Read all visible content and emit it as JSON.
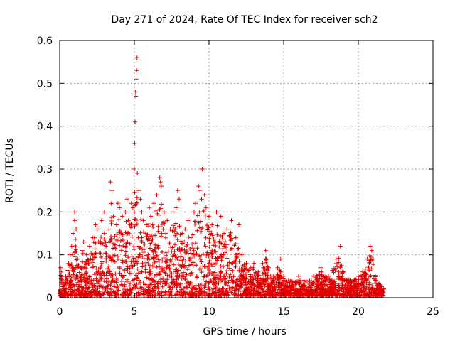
{
  "chart_data": {
    "type": "scatter",
    "title": "Day 271 of 2024, Rate Of TEC Index for receiver sch2",
    "xlabel": "GPS time / hours",
    "ylabel": "ROTI / TECUs",
    "xlim": [
      0,
      25
    ],
    "ylim": [
      0,
      0.6
    ],
    "xticks": [
      0,
      5,
      10,
      15,
      20,
      25
    ],
    "yticks": [
      0,
      0.1,
      0.2,
      0.3,
      0.4,
      0.5,
      0.6
    ],
    "xtick_labels": [
      "0",
      "5",
      "10",
      "15",
      "20",
      "25"
    ],
    "ytick_labels": [
      "0",
      "0.1",
      "0.2",
      "0.3",
      "0.4",
      "0.5",
      "0.6"
    ],
    "grid": true,
    "marker": "+",
    "color": "#e00000",
    "series": [
      {
        "name": "ROTI",
        "points": [
          [
            0.05,
            0.07
          ],
          [
            0.1,
            0.06
          ],
          [
            0.2,
            0.04
          ],
          [
            0.4,
            0.05
          ],
          [
            0.6,
            0.08
          ],
          [
            0.7,
            0.1
          ],
          [
            0.8,
            0.12
          ],
          [
            0.9,
            0.15
          ],
          [
            1.0,
            0.18
          ],
          [
            1.0,
            0.2
          ],
          [
            1.1,
            0.16
          ],
          [
            1.2,
            0.09
          ],
          [
            1.4,
            0.07
          ],
          [
            1.5,
            0.11
          ],
          [
            1.6,
            0.13
          ],
          [
            1.8,
            0.1
          ],
          [
            2.0,
            0.12
          ],
          [
            2.2,
            0.14
          ],
          [
            2.4,
            0.17
          ],
          [
            2.5,
            0.16
          ],
          [
            2.6,
            0.13
          ],
          [
            2.8,
            0.18
          ],
          [
            3.0,
            0.2
          ],
          [
            3.1,
            0.12
          ],
          [
            3.3,
            0.16
          ],
          [
            3.4,
            0.27
          ],
          [
            3.5,
            0.25
          ],
          [
            3.6,
            0.19
          ],
          [
            3.8,
            0.17
          ],
          [
            3.9,
            0.22
          ],
          [
            4.0,
            0.21
          ],
          [
            4.1,
            0.15
          ],
          [
            4.2,
            0.19
          ],
          [
            4.3,
            0.13
          ],
          [
            4.4,
            0.2
          ],
          [
            4.5,
            0.23
          ],
          [
            4.6,
            0.18
          ],
          [
            4.7,
            0.17
          ],
          [
            4.8,
            0.22
          ],
          [
            4.9,
            0.21
          ],
          [
            5.0,
            0.3
          ],
          [
            5.02,
            0.36
          ],
          [
            5.05,
            0.41
          ],
          [
            5.08,
            0.48
          ],
          [
            5.1,
            0.47
          ],
          [
            5.12,
            0.51
          ],
          [
            5.15,
            0.53
          ],
          [
            5.18,
            0.56
          ],
          [
            5.2,
            0.29
          ],
          [
            5.3,
            0.25
          ],
          [
            5.4,
            0.23
          ],
          [
            5.5,
            0.2
          ],
          [
            5.6,
            0.18
          ],
          [
            5.8,
            0.17
          ],
          [
            6.0,
            0.21
          ],
          [
            6.1,
            0.19
          ],
          [
            6.3,
            0.22
          ],
          [
            6.5,
            0.24
          ],
          [
            6.7,
            0.28
          ],
          [
            6.75,
            0.27
          ],
          [
            6.8,
            0.26
          ],
          [
            7.0,
            0.2
          ],
          [
            7.2,
            0.18
          ],
          [
            7.4,
            0.16
          ],
          [
            7.6,
            0.2
          ],
          [
            7.8,
            0.21
          ],
          [
            7.9,
            0.25
          ],
          [
            8.0,
            0.23
          ],
          [
            8.2,
            0.15
          ],
          [
            8.4,
            0.16
          ],
          [
            8.6,
            0.18
          ],
          [
            8.8,
            0.14
          ],
          [
            9.0,
            0.2
          ],
          [
            9.1,
            0.22
          ],
          [
            9.3,
            0.26
          ],
          [
            9.4,
            0.25
          ],
          [
            9.5,
            0.23
          ],
          [
            9.55,
            0.3
          ],
          [
            9.7,
            0.24
          ],
          [
            9.8,
            0.21
          ],
          [
            10.0,
            0.19
          ],
          [
            10.2,
            0.17
          ],
          [
            10.5,
            0.2
          ],
          [
            10.8,
            0.19
          ],
          [
            11.0,
            0.15
          ],
          [
            11.2,
            0.16
          ],
          [
            11.5,
            0.18
          ],
          [
            11.8,
            0.14
          ],
          [
            12.0,
            0.17
          ],
          [
            12.2,
            0.1
          ],
          [
            12.5,
            0.08
          ],
          [
            12.8,
            0.07
          ],
          [
            13.0,
            0.08
          ],
          [
            13.3,
            0.06
          ],
          [
            13.6,
            0.08
          ],
          [
            13.8,
            0.11
          ],
          [
            14.0,
            0.07
          ],
          [
            14.3,
            0.05
          ],
          [
            14.6,
            0.07
          ],
          [
            14.8,
            0.09
          ],
          [
            15.0,
            0.05
          ],
          [
            15.5,
            0.04
          ],
          [
            16.0,
            0.05
          ],
          [
            16.5,
            0.04
          ],
          [
            17.0,
            0.05
          ],
          [
            17.5,
            0.07
          ],
          [
            18.0,
            0.05
          ],
          [
            18.5,
            0.09
          ],
          [
            18.8,
            0.12
          ],
          [
            19.0,
            0.06
          ],
          [
            19.5,
            0.04
          ],
          [
            20.0,
            0.05
          ],
          [
            20.3,
            0.06
          ],
          [
            20.6,
            0.09
          ],
          [
            20.8,
            0.12
          ],
          [
            20.9,
            0.11
          ],
          [
            21.0,
            0.09
          ],
          [
            21.2,
            0.04
          ],
          [
            21.5,
            0.03
          ],
          [
            21.7,
            0.02
          ]
        ]
      }
    ]
  }
}
